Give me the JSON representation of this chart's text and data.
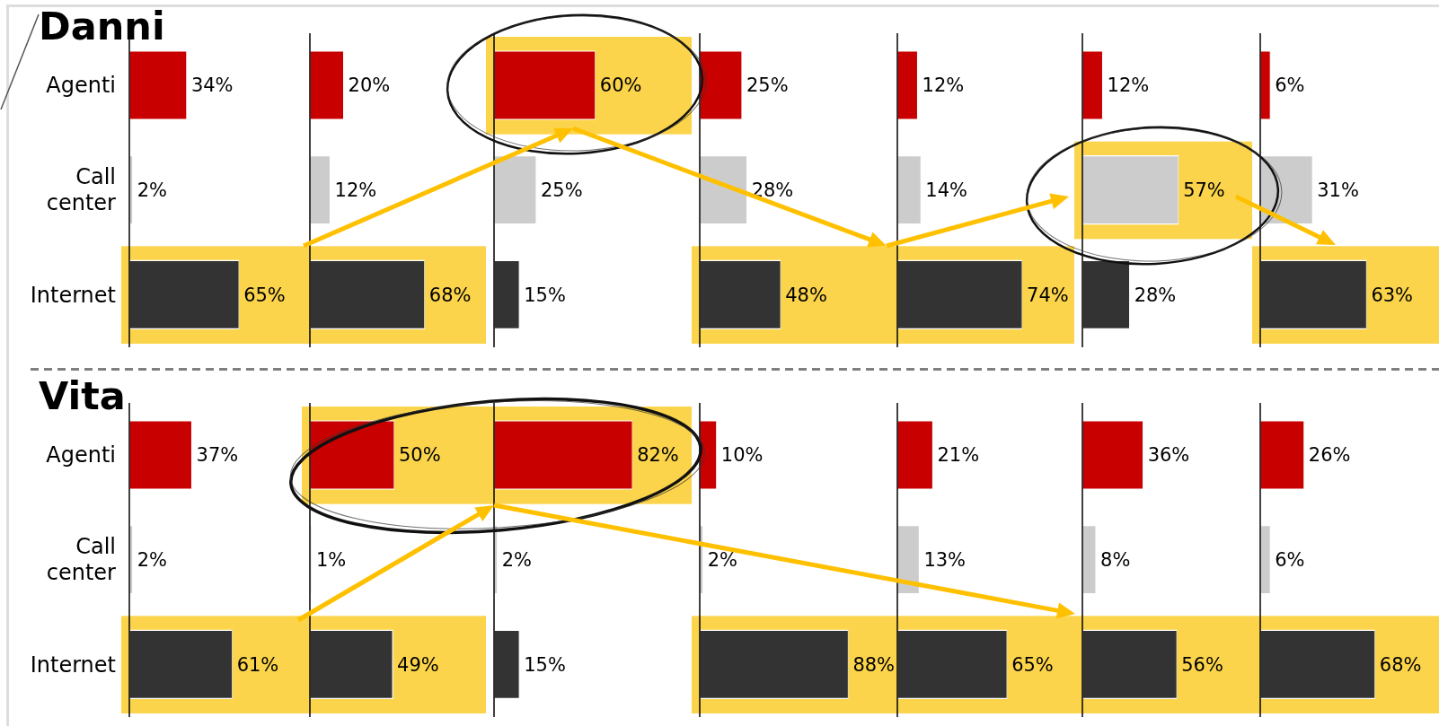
{
  "chart_data": [
    {
      "type": "bar",
      "orientation": "horizontal",
      "title": "Danni",
      "categories": [
        "Agenti",
        "Call center",
        "Internet"
      ],
      "values": [
        34,
        2,
        65
      ],
      "colors": [
        "#c80000",
        "#cccccc",
        "#333333"
      ],
      "value_labels": [
        "34%",
        "2%",
        "65%"
      ],
      "tick_labels": "y",
      "bands": [
        {
          "axis": "y",
          "from": "Internet",
          "to": "Internet",
          "color": "#fbd44b"
        }
      ]
    },
    {
      "type": "bar",
      "orientation": "horizontal",
      "categories": [
        "Agenti",
        "Call center",
        "Internet"
      ],
      "values": [
        20,
        12,
        68
      ],
      "colors": [
        "#c80000",
        "#cccccc",
        "#333333"
      ],
      "value_labels": [
        "20%",
        "12%",
        "68%"
      ],
      "tick_labels": false,
      "bands": [
        {
          "axis": "y",
          "from": "Internet",
          "to": "Internet",
          "color": "#fbd44b"
        }
      ]
    },
    {
      "type": "bar",
      "orientation": "horizontal",
      "categories": [
        "Agenti",
        "Call center",
        "Internet"
      ],
      "values": [
        60,
        25,
        15
      ],
      "colors": [
        "#c80000",
        "#cccccc",
        "#333333"
      ],
      "value_labels": [
        "60%",
        "25%",
        "15%"
      ],
      "tick_labels": false,
      "bands": [
        {
          "axis": "y",
          "from": "Agenti",
          "to": "Agenti",
          "color": "#fbd44b"
        }
      ]
    },
    {
      "type": "bar",
      "orientation": "horizontal",
      "categories": [
        "Agenti",
        "Call center",
        "Internet"
      ],
      "values": [
        25,
        28,
        48
      ],
      "colors": [
        "#c80000",
        "#cccccc",
        "#333333"
      ],
      "value_labels": [
        "25%",
        "28%",
        "48%"
      ],
      "tick_labels": false,
      "bands": [
        {
          "axis": "y",
          "from": "Internet",
          "to": "Internet",
          "color": "#fbd44b"
        }
      ]
    },
    {
      "type": "bar",
      "orientation": "horizontal",
      "categories": [
        "Agenti",
        "Call center",
        "Internet"
      ],
      "values": [
        12,
        14,
        74
      ],
      "colors": [
        "#c80000",
        "#cccccc",
        "#333333"
      ],
      "value_labels": [
        "12%",
        "14%",
        "74%"
      ],
      "tick_labels": false,
      "bands": [
        {
          "axis": "y",
          "from": "Internet",
          "to": "Internet",
          "color": "#fbd44b"
        }
      ]
    },
    {
      "type": "bar",
      "orientation": "horizontal",
      "categories": [
        "Agenti",
        "Call center",
        "Internet"
      ],
      "values": [
        12,
        57,
        28
      ],
      "colors": [
        "#c80000",
        "#cccccc",
        "#333333"
      ],
      "value_labels": [
        "12%",
        "57%",
        "28%"
      ],
      "tick_labels": false,
      "bands": [
        {
          "axis": "y",
          "from": "Call center",
          "to": "Call center",
          "color": "#fbd44b"
        }
      ]
    },
    {
      "type": "bar",
      "orientation": "horizontal",
      "categories": [
        "Agenti",
        "Call center",
        "Internet"
      ],
      "values": [
        6,
        31,
        63
      ],
      "colors": [
        "#c80000",
        "#cccccc",
        "#333333"
      ],
      "value_labels": [
        "6%",
        "31%",
        "63%"
      ],
      "tick_labels": false,
      "bands": [
        {
          "axis": "y",
          "from": "Internet",
          "to": "Internet",
          "color": "#fbd44b"
        }
      ]
    },
    {
      "type": "bar",
      "orientation": "horizontal",
      "title": "Vita",
      "categories": [
        "Agenti",
        "Call center",
        "Internet"
      ],
      "values": [
        37,
        2,
        61
      ],
      "colors": [
        "#c80000",
        "#cccccc",
        "#333333"
      ],
      "value_labels": [
        "37%",
        "2%",
        "61%"
      ],
      "tick_labels": "y",
      "bands": [
        {
          "axis": "y",
          "from": "Internet",
          "to": "Internet",
          "color": "#fbd44b"
        }
      ]
    },
    {
      "type": "bar",
      "orientation": "horizontal",
      "categories": [
        "Agenti",
        "Call center",
        "Internet"
      ],
      "values": [
        50,
        1,
        49
      ],
      "colors": [
        "#c80000",
        "#cccccc",
        "#333333"
      ],
      "value_labels": [
        "50%",
        "1%",
        "49%"
      ],
      "tick_labels": false,
      "bands": [
        {
          "axis": "y",
          "from": "Agenti",
          "to": "Agenti",
          "color": "#fbd44b"
        },
        {
          "axis": "y",
          "from": "Internet",
          "to": "Internet",
          "color": "#fbd44b"
        }
      ]
    },
    {
      "type": "bar",
      "orientation": "horizontal",
      "categories": [
        "Agenti",
        "Call center",
        "Internet"
      ],
      "values": [
        82,
        2,
        15
      ],
      "colors": [
        "#c80000",
        "#cccccc",
        "#333333"
      ],
      "value_labels": [
        "82%",
        "2%",
        "15%"
      ],
      "tick_labels": false,
      "bands": [
        {
          "axis": "y",
          "from": "Agenti",
          "to": "Agenti",
          "color": "#fbd44b"
        }
      ]
    },
    {
      "type": "bar",
      "orientation": "horizontal",
      "categories": [
        "Agenti",
        "Call center",
        "Internet"
      ],
      "values": [
        10,
        2,
        88
      ],
      "colors": [
        "#c80000",
        "#cccccc",
        "#333333"
      ],
      "value_labels": [
        "10%",
        "2%",
        "88%"
      ],
      "tick_labels": false,
      "bands": [
        {
          "axis": "y",
          "from": "Internet",
          "to": "Internet",
          "color": "#fbd44b"
        }
      ]
    },
    {
      "type": "bar",
      "orientation": "horizontal",
      "categories": [
        "Agenti",
        "Call center",
        "Internet"
      ],
      "values": [
        21,
        13,
        65
      ],
      "colors": [
        "#c80000",
        "#cccccc",
        "#333333"
      ],
      "value_labels": [
        "21%",
        "13%",
        "65%"
      ],
      "tick_labels": false,
      "bands": [
        {
          "axis": "y",
          "from": "Internet",
          "to": "Internet",
          "color": "#fbd44b"
        }
      ]
    },
    {
      "type": "bar",
      "orientation": "horizontal",
      "categories": [
        "Agenti",
        "Call center",
        "Internet"
      ],
      "values": [
        36,
        8,
        56
      ],
      "colors": [
        "#c80000",
        "#cccccc",
        "#333333"
      ],
      "value_labels": [
        "36%",
        "8%",
        "56%"
      ],
      "tick_labels": false,
      "bands": [
        {
          "axis": "y",
          "from": "Internet",
          "to": "Internet",
          "color": "#fbd44b"
        }
      ]
    },
    {
      "type": "bar",
      "orientation": "horizontal",
      "categories": [
        "Agenti",
        "Call center",
        "Internet"
      ],
      "values": [
        26,
        6,
        68
      ],
      "colors": [
        "#c80000",
        "#cccccc",
        "#333333"
      ],
      "value_labels": [
        "26%",
        "6%",
        "68%"
      ],
      "tick_labels": false,
      "bands": [
        {
          "axis": "y",
          "from": "Internet",
          "to": "Internet",
          "color": "#fbd44b"
        }
      ]
    }
  ]
}
